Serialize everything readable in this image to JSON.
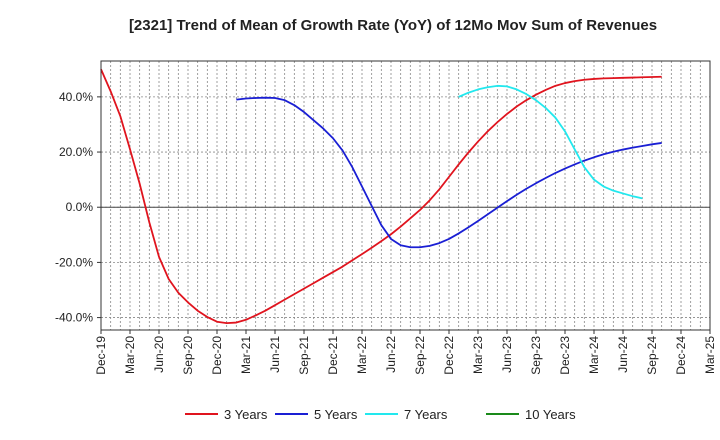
{
  "chart_data": {
    "type": "line",
    "title": "[2321]  Trend of Mean of Growth Rate (YoY) of 12Mo Mov Sum of Revenues",
    "xlabel": "",
    "ylabel": "",
    "x_ticks": [
      "Dec-19",
      "Mar-20",
      "Jun-20",
      "Sep-20",
      "Dec-20",
      "Mar-21",
      "Jun-21",
      "Sep-21",
      "Dec-21",
      "Mar-22",
      "Jun-22",
      "Sep-22",
      "Dec-22",
      "Mar-23",
      "Jun-23",
      "Sep-23",
      "Dec-23",
      "Mar-24",
      "Jun-24",
      "Sep-24",
      "Dec-24",
      "Mar-25"
    ],
    "y_ticks": [
      {
        "value": 40,
        "label": "40.0%"
      },
      {
        "value": 20,
        "label": "20.0%"
      },
      {
        "value": 0,
        "label": "0.0%"
      },
      {
        "value": -20,
        "label": "-20.0%"
      },
      {
        "value": -40,
        "label": "-40.0%"
      }
    ],
    "ylim": [
      -44.5,
      53
    ],
    "grid": true,
    "legend_position": "bottom",
    "series": [
      {
        "name": "3 Years",
        "color": "#e0141e",
        "start_index": 0,
        "values": [
          50.0,
          42.0,
          33.0,
          21.0,
          8.5,
          -5.5,
          -18.0,
          -26.0,
          -31.0,
          -34.5,
          -37.5,
          -39.8,
          -41.5,
          -42.0,
          -41.8,
          -40.8,
          -39.2,
          -37.5,
          -35.5,
          -33.5,
          -31.5,
          -29.5,
          -27.5,
          -25.5,
          -23.5,
          -21.5,
          -19.2,
          -17.0,
          -14.7,
          -12.3,
          -9.8,
          -7.0,
          -4.0,
          -1.0,
          2.5,
          6.5,
          11.0,
          15.5,
          19.8,
          23.8,
          27.5,
          30.8,
          33.8,
          36.5,
          38.8,
          40.8,
          42.5,
          44.0,
          45.0,
          45.7,
          46.2,
          46.5,
          46.7,
          46.8,
          46.9,
          47.0,
          47.1,
          47.2,
          47.3
        ]
      },
      {
        "name": "5 Years",
        "color": "#1a1fd4",
        "start_index": 14,
        "values": [
          39.0,
          39.4,
          39.6,
          39.7,
          39.6,
          38.8,
          37.0,
          34.5,
          31.5,
          28.5,
          25.0,
          20.5,
          14.5,
          7.5,
          0.5,
          -6.5,
          -11.5,
          -13.8,
          -14.5,
          -14.5,
          -14.0,
          -13.0,
          -11.5,
          -9.5,
          -7.3,
          -5.0,
          -2.6,
          -0.2,
          2.2,
          4.5,
          6.7,
          8.7,
          10.6,
          12.4,
          14.0,
          15.5,
          16.9,
          18.1,
          19.2,
          20.1,
          20.9,
          21.6,
          22.2,
          22.8,
          23.3
        ]
      },
      {
        "name": "7 Years",
        "color": "#22e8ee",
        "start_index": 37,
        "values": [
          40.0,
          41.5,
          42.7,
          43.5,
          44.0,
          43.8,
          42.7,
          41.0,
          38.8,
          36.0,
          32.5,
          27.5,
          21.0,
          14.5,
          10.0,
          7.5,
          6.0,
          5.0,
          4.0,
          3.2
        ]
      },
      {
        "name": "10 Years",
        "color": "#1a8a1a",
        "start_index": 0,
        "values": []
      }
    ]
  }
}
